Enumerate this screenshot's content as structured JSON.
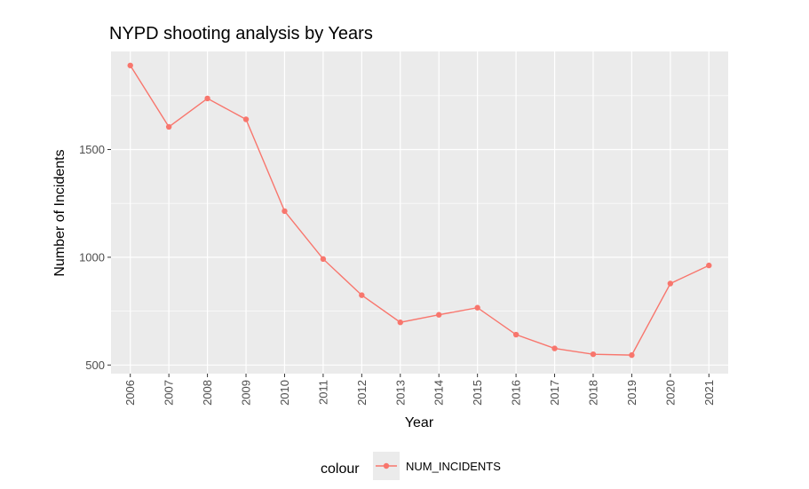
{
  "chart_data": {
    "type": "line",
    "title": "NYPD shooting analysis by Years",
    "xlabel": "Year",
    "ylabel": "Number of Incidents",
    "categories": [
      "2006",
      "2007",
      "2008",
      "2009",
      "2010",
      "2011",
      "2012",
      "2013",
      "2014",
      "2015",
      "2016",
      "2017",
      "2018",
      "2019",
      "2020",
      "2021"
    ],
    "series": [
      {
        "name": "NUM_INCIDENTS",
        "values": [
          1890,
          1605,
          1737,
          1640,
          1214,
          992,
          824,
          698,
          733,
          766,
          641,
          577,
          550,
          546,
          878,
          962
        ]
      }
    ],
    "yticks": [
      500,
      1000,
      1500
    ],
    "ylim": [
      460,
      1955
    ],
    "legend": {
      "title": "colour",
      "position": "bottom"
    },
    "grid": true,
    "colors": {
      "line": "#F8766D",
      "panel": "#EBEBEB",
      "grid": "#FFFFFF",
      "tick_text": "#4D4D4D"
    }
  }
}
